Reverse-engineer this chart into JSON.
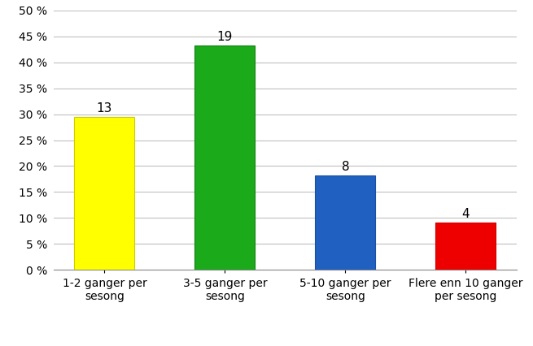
{
  "categories": [
    "1-2 ganger per\nsesong",
    "3-5 ganger per\nsesong",
    "5-10 ganger per\nsesong",
    "Flere enn 10 ganger\nper sesong"
  ],
  "values": [
    29.5,
    43.2,
    18.2,
    9.1
  ],
  "labels": [
    13,
    19,
    8,
    4
  ],
  "bar_colors": [
    "#ffff00",
    "#1aaa1a",
    "#2060c0",
    "#ee0000"
  ],
  "bar_edge_colors": [
    "#cccc00",
    "#148014",
    "#1a50a0",
    "#cc0000"
  ],
  "ylim": [
    0,
    50
  ],
  "yticks": [
    0,
    5,
    10,
    15,
    20,
    25,
    30,
    35,
    40,
    45,
    50
  ],
  "background_color": "#ffffff",
  "grid_color": "#c0c0c0",
  "label_fontsize": 10,
  "tick_fontsize": 10,
  "annotation_fontsize": 11
}
